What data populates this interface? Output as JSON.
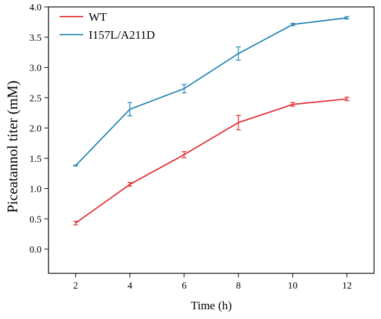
{
  "chart_data": {
    "type": "line",
    "title": "",
    "xlabel": "Time (h)",
    "ylabel": "Piceatannol titer (mM)",
    "x": [
      2,
      4,
      6,
      8,
      10,
      12
    ],
    "xlim": [
      1,
      13
    ],
    "ylim": [
      -0.4,
      4.0
    ],
    "xticks": [
      2,
      4,
      6,
      8,
      10,
      12
    ],
    "yticks": [
      "0.0",
      "0.5",
      "1.0",
      "1.5",
      "2.0",
      "2.5",
      "3.0",
      "3.5",
      "4.0"
    ],
    "grid": false,
    "legend_position": "top-left",
    "series": [
      {
        "name": "WT",
        "color": "#e3262b",
        "values": [
          0.43,
          1.07,
          1.56,
          2.09,
          2.39,
          2.48
        ],
        "errors": [
          0.03,
          0.03,
          0.05,
          0.12,
          0.03,
          0.03
        ]
      },
      {
        "name": "I157L/A211D",
        "color": "#1f82b4",
        "values": [
          1.38,
          2.31,
          2.65,
          3.23,
          3.71,
          3.82
        ],
        "errors": [
          0.01,
          0.11,
          0.07,
          0.11,
          0.02,
          0.02
        ]
      }
    ]
  }
}
